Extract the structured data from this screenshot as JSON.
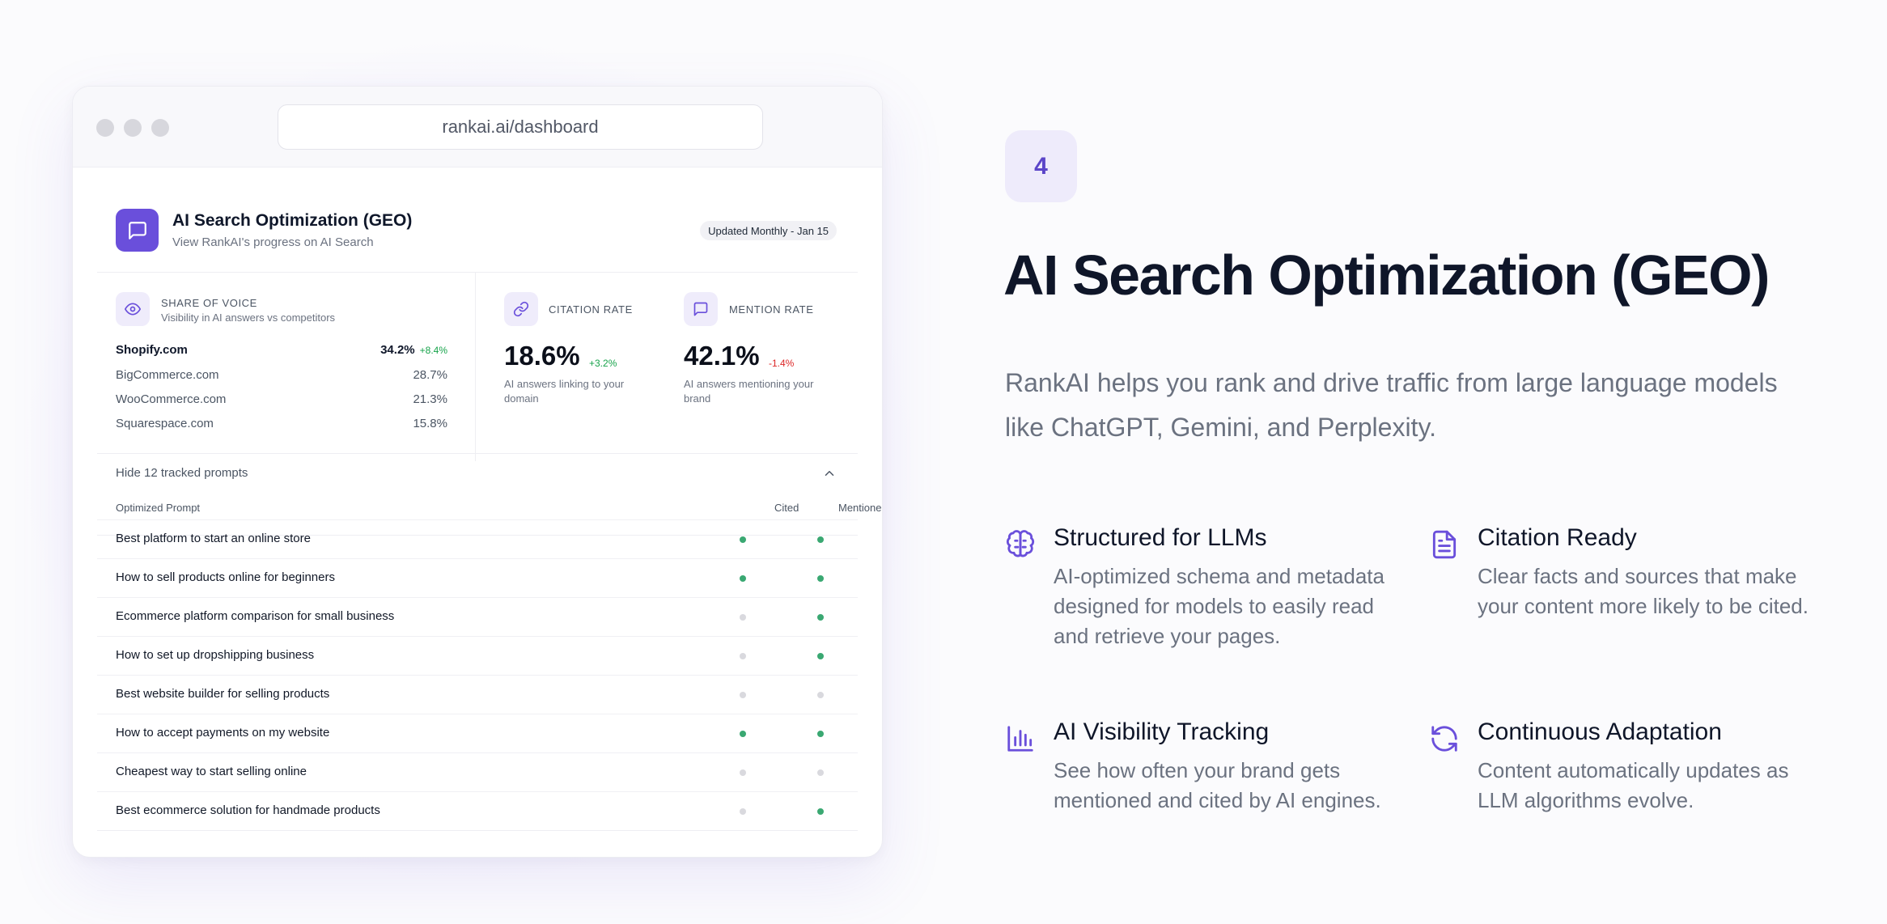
{
  "browser": {
    "url": "rankai.ai/dashboard"
  },
  "dashboard": {
    "title": "AI Search Optimization (GEO)",
    "subtitle": "View RankAI's progress on AI Search",
    "updated": "Updated Monthly - Jan 15",
    "share_of_voice": {
      "label": "SHARE OF VOICE",
      "sublabel": "Visibility in AI answers vs competitors",
      "rows": [
        {
          "name": "Shopify.com",
          "pct": "34.2%",
          "delta": "+8.4%"
        },
        {
          "name": "BigCommerce.com",
          "pct": "28.7%"
        },
        {
          "name": "WooCommerce.com",
          "pct": "21.3%"
        },
        {
          "name": "Squarespace.com",
          "pct": "15.8%"
        }
      ]
    },
    "citation_rate": {
      "label": "CITATION RATE",
      "value": "18.6%",
      "delta": "+3.2%",
      "desc": "AI answers linking to your domain"
    },
    "mention_rate": {
      "label": "MENTION RATE",
      "value": "42.1%",
      "delta": "-1.4%",
      "desc": "AI answers mentioning your brand"
    },
    "toggle_label": "Hide 12 tracked prompts",
    "table": {
      "col_prompt": "Optimized Prompt",
      "col_cited": "Cited",
      "col_mentioned": "Mentioned",
      "rows": [
        {
          "prompt": "Best platform to start an online store",
          "cited": true,
          "mentioned": true
        },
        {
          "prompt": "How to sell products online for beginners",
          "cited": true,
          "mentioned": true
        },
        {
          "prompt": "Ecommerce platform comparison for small business",
          "cited": false,
          "mentioned": true
        },
        {
          "prompt": "How to set up dropshipping business",
          "cited": false,
          "mentioned": true
        },
        {
          "prompt": "Best website builder for selling products",
          "cited": false,
          "mentioned": false
        },
        {
          "prompt": "How to accept payments on my website",
          "cited": true,
          "mentioned": true
        },
        {
          "prompt": "Cheapest way to start selling online",
          "cited": false,
          "mentioned": false
        },
        {
          "prompt": "Best ecommerce solution for handmade products",
          "cited": false,
          "mentioned": true
        }
      ]
    }
  },
  "hero": {
    "step": "4",
    "headline": "AI Search Optimization (GEO)",
    "lede": "RankAI helps you rank and drive traffic from large language models like ChatGPT, Gemini, and Perplexity.",
    "features": [
      {
        "icon": "brain-icon",
        "title": "Structured for LLMs",
        "desc": "AI-optimized schema and metadata designed for models to easily read and retrieve your pages."
      },
      {
        "icon": "document-icon",
        "title": "Citation Ready",
        "desc": "Clear facts and sources that make your content more likely to be cited."
      },
      {
        "icon": "bar-chart-icon",
        "title": "AI Visibility Tracking",
        "desc": "See how often your brand gets mentioned and cited by AI engines."
      },
      {
        "icon": "refresh-icon",
        "title": "Continuous Adaptation",
        "desc": "Content automatically updates as LLM algorithms evolve."
      }
    ]
  },
  "colors": {
    "accent": "#6a4fdb",
    "positive": "#16a34a",
    "negative": "#dc2626",
    "dot_on": "#3aa872",
    "dot_off": "#d9d9de"
  }
}
